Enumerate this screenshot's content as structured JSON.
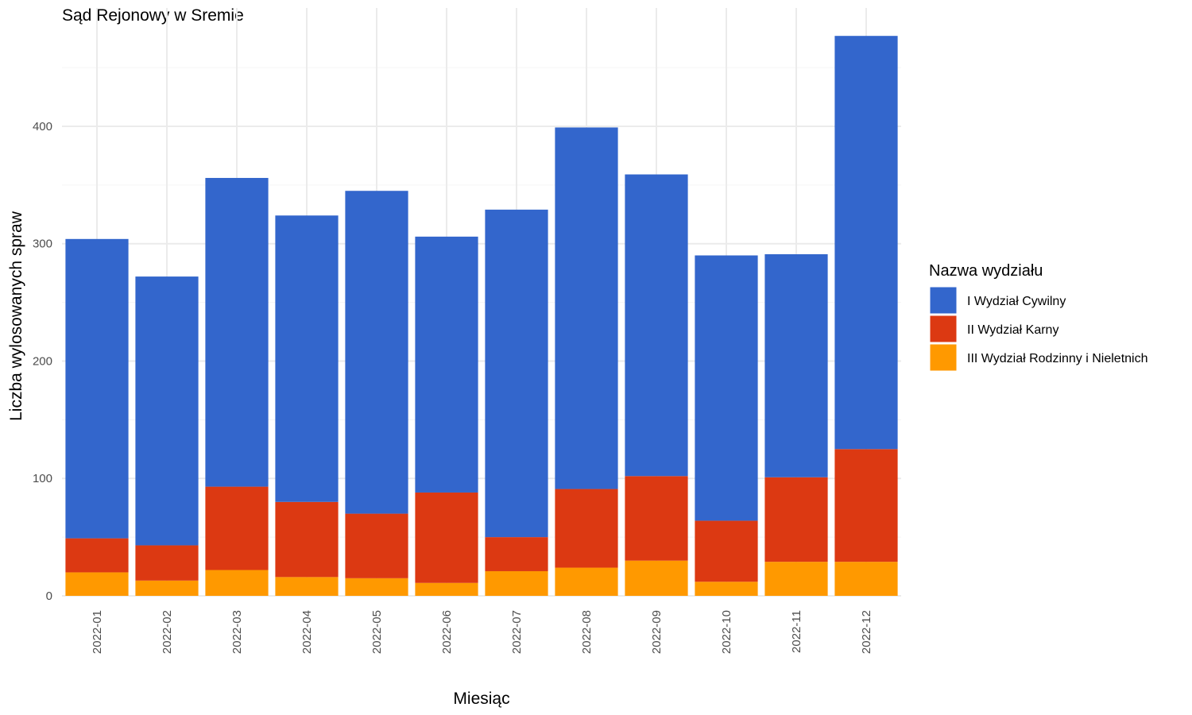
{
  "chart_data": {
    "type": "bar",
    "stacked": true,
    "title": "Sąd Rejonowy w Sremie",
    "xlabel": "Miesiąc",
    "ylabel": "Liczba wylosowanych spraw",
    "ylim": [
      0,
      480
    ],
    "yticks": [
      0,
      100,
      200,
      300,
      400
    ],
    "grid": true,
    "legend_title": "Nazwa wydziału",
    "legend_position": "right",
    "categories": [
      "2022-01",
      "2022-02",
      "2022-03",
      "2022-04",
      "2022-05",
      "2022-06",
      "2022-07",
      "2022-08",
      "2022-09",
      "2022-10",
      "2022-11",
      "2022-12"
    ],
    "series": [
      {
        "name": "I Wydział Cywilny",
        "color": "#3366cc",
        "values": [
          255,
          229,
          263,
          244,
          275,
          218,
          279,
          308,
          257,
          226,
          190,
          352
        ]
      },
      {
        "name": "II Wydział Karny",
        "color": "#dc3912",
        "values": [
          29,
          30,
          71,
          64,
          55,
          77,
          29,
          67,
          72,
          52,
          72,
          96
        ]
      },
      {
        "name": "III Wydział Rodzinny i Nieletnich",
        "color": "#ff9900",
        "values": [
          20,
          13,
          22,
          16,
          15,
          11,
          21,
          24,
          30,
          12,
          29,
          29
        ]
      }
    ]
  }
}
